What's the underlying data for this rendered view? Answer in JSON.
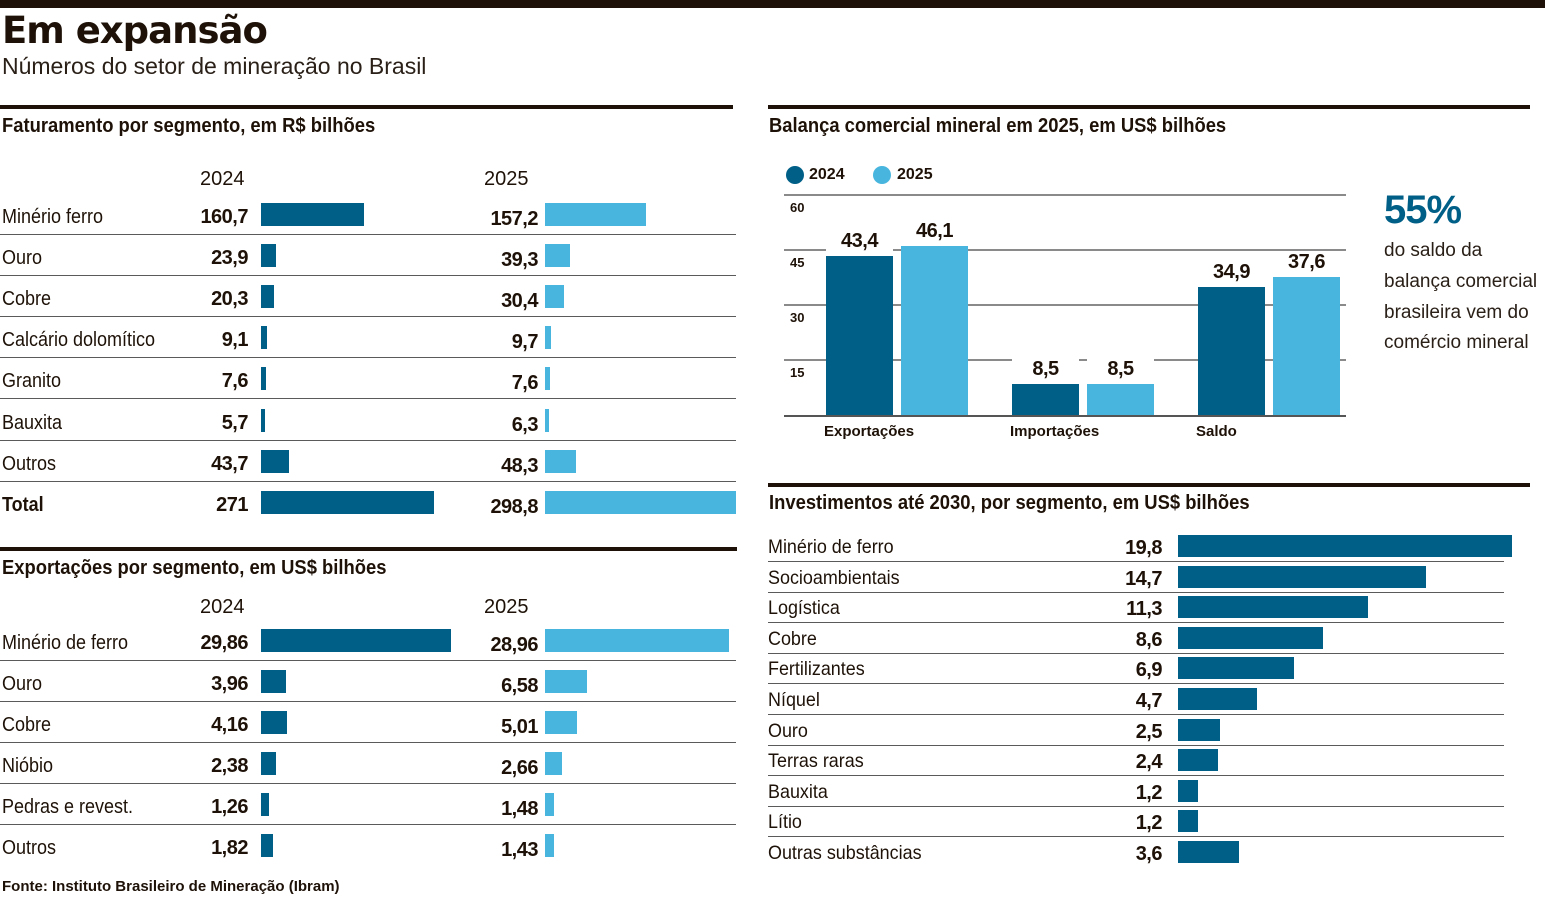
{
  "header": {
    "title": "Em expansão",
    "subtitle": "Números do setor de mineração no Brasil"
  },
  "colors": {
    "dark_blue": "#005f87",
    "light_blue": "#47b5de",
    "ink": "#1e1208"
  },
  "source": "Fonte: Instituto Brasileiro de Mineração (Ibram)",
  "callout": {
    "value": "55%",
    "text": "do saldo da balança comercial brasileira vem do comércio mineral"
  },
  "chart_data": [
    {
      "type": "bar",
      "id": "faturamento",
      "title": "Faturamento por segmento, em R$ bilhões",
      "series_names": [
        "2024",
        "2025"
      ],
      "categories": [
        "Minério ferro",
        "Ouro",
        "Cobre",
        "Calcário dolomítico",
        "Granito",
        "Bauxita",
        "Outros",
        "Total"
      ],
      "series": [
        {
          "name": "2024",
          "values": [
            160.7,
            23.9,
            20.3,
            9.1,
            7.6,
            5.7,
            43.7,
            271
          ],
          "labels": [
            "160,7",
            "23,9",
            "20,3",
            "9,1",
            "7,6",
            "5,7",
            "43,7",
            "271"
          ]
        },
        {
          "name": "2025",
          "values": [
            157.2,
            39.3,
            30.4,
            9.7,
            7.6,
            6.3,
            48.3,
            298.8
          ],
          "labels": [
            "157,2",
            "39,3",
            "30,4",
            "9,7",
            "7,6",
            "6,3",
            "48,3",
            "298,8"
          ]
        }
      ],
      "orientation": "horizontal",
      "bold_rows": [
        "Total"
      ]
    },
    {
      "type": "bar",
      "id": "exportacoes",
      "title": "Exportações por segmento, em US$ bilhões",
      "series_names": [
        "2024",
        "2025"
      ],
      "categories": [
        "Minério de ferro",
        "Ouro",
        "Cobre",
        "Nióbio",
        "Pedras e revest.",
        "Outros"
      ],
      "series": [
        {
          "name": "2024",
          "values": [
            29.86,
            3.96,
            4.16,
            2.38,
            1.26,
            1.82
          ],
          "labels": [
            "29,86",
            "3,96",
            "4,16",
            "2,38",
            "1,26",
            "1,82"
          ]
        },
        {
          "name": "2025",
          "values": [
            28.96,
            6.58,
            5.01,
            2.66,
            1.48,
            1.43
          ],
          "labels": [
            "28,96",
            "6,58",
            "5,01",
            "2,66",
            "1,48",
            "1,43"
          ]
        }
      ],
      "orientation": "horizontal"
    },
    {
      "type": "bar",
      "id": "balanca",
      "title": "Balança comercial mineral em 2025, em US$ bilhões",
      "categories": [
        "Exportações",
        "Importações",
        "Saldo"
      ],
      "series": [
        {
          "name": "2024",
          "values": [
            43.4,
            8.5,
            34.9
          ],
          "labels": [
            "43,4",
            "8,5",
            "34,9"
          ]
        },
        {
          "name": "2025",
          "values": [
            46.1,
            8.5,
            37.6
          ],
          "labels": [
            "46,1",
            "8,5",
            "37,6"
          ]
        }
      ],
      "yticks": [
        "15",
        "30",
        "45",
        "60"
      ],
      "ytick_values": [
        15,
        30,
        45,
        60
      ],
      "ylim": [
        0,
        60
      ],
      "grid": true,
      "legend": "top-left",
      "orientation": "vertical"
    },
    {
      "type": "bar",
      "id": "investimentos",
      "title": "Investimentos até 2030, por segmento, em US$ bilhões",
      "categories": [
        "Minério de ferro",
        "Socioambientais",
        "Logística",
        "Cobre",
        "Fertilizantes",
        "Níquel",
        "Ouro",
        "Terras raras",
        "Bauxita",
        "Lítio",
        "Outras substâncias"
      ],
      "values": [
        19.8,
        14.7,
        11.3,
        8.6,
        6.9,
        4.7,
        2.5,
        2.4,
        1.2,
        1.2,
        3.6
      ],
      "labels": [
        "19,8",
        "14,7",
        "11,3",
        "8,6",
        "6,9",
        "4,7",
        "2,5",
        "2,4",
        "1,2",
        "1,2",
        "3,6"
      ],
      "orientation": "horizontal"
    }
  ]
}
